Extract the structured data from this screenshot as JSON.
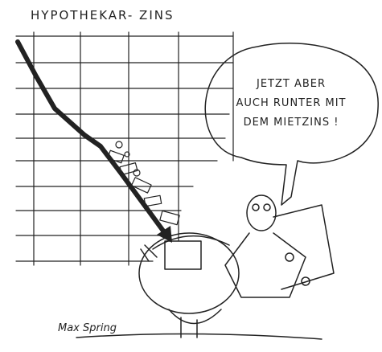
{
  "title": "HYPOTHEKAR- ZINS",
  "speech_bubble": {
    "lines": [
      "JETZT ABER",
      "AUCH RUNTER MIT",
      "DEM MIETZINS !"
    ]
  },
  "signature": "Max Spring"
}
